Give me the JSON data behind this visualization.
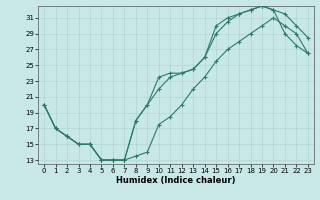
{
  "bg_color": "#c8e8e8",
  "line_color": "#2a7a6a",
  "grid_color": "#b0d4d4",
  "xlabel": "Humidex (Indice chaleur)",
  "xlim": [
    -0.5,
    23.5
  ],
  "ylim": [
    12.5,
    32.5
  ],
  "xticks": [
    0,
    1,
    2,
    3,
    4,
    5,
    6,
    7,
    8,
    9,
    10,
    11,
    12,
    13,
    14,
    15,
    16,
    17,
    18,
    19,
    20,
    21,
    22,
    23
  ],
  "yticks": [
    13,
    15,
    17,
    19,
    21,
    23,
    25,
    27,
    29,
    31
  ],
  "curve1_x": [
    0,
    1,
    2,
    3,
    4,
    5,
    6,
    7,
    8,
    9,
    10,
    11,
    12,
    13,
    14,
    15,
    16,
    17,
    18,
    19,
    20,
    21,
    22,
    23
  ],
  "curve1_y": [
    20,
    17,
    16,
    15,
    15,
    13,
    13,
    13,
    18,
    20,
    23.5,
    24,
    24,
    24.5,
    26,
    30,
    31,
    31.5,
    32,
    32.5,
    32,
    29,
    27.5,
    26.5
  ],
  "curve2_x": [
    0,
    1,
    2,
    3,
    4,
    5,
    6,
    7,
    8,
    9,
    10,
    11,
    12,
    13,
    14,
    15,
    16,
    17,
    18,
    19,
    20,
    21,
    22,
    23
  ],
  "curve2_y": [
    20,
    17,
    16,
    15,
    15,
    13,
    13,
    13,
    18,
    20,
    22,
    23.5,
    24,
    24.5,
    26,
    29,
    30.5,
    31.5,
    32,
    32.5,
    32,
    31.5,
    30,
    28.5
  ],
  "curve3_x": [
    0,
    1,
    2,
    3,
    4,
    5,
    6,
    7,
    8,
    9,
    10,
    11,
    12,
    13,
    14,
    15,
    16,
    17,
    18,
    19,
    20,
    21,
    22,
    23
  ],
  "curve3_y": [
    20,
    17,
    16,
    15,
    15,
    13,
    13,
    13,
    13.5,
    14,
    17.5,
    18.5,
    20,
    22,
    23.5,
    25.5,
    27,
    28,
    29,
    30,
    31,
    30,
    29,
    26.5
  ]
}
